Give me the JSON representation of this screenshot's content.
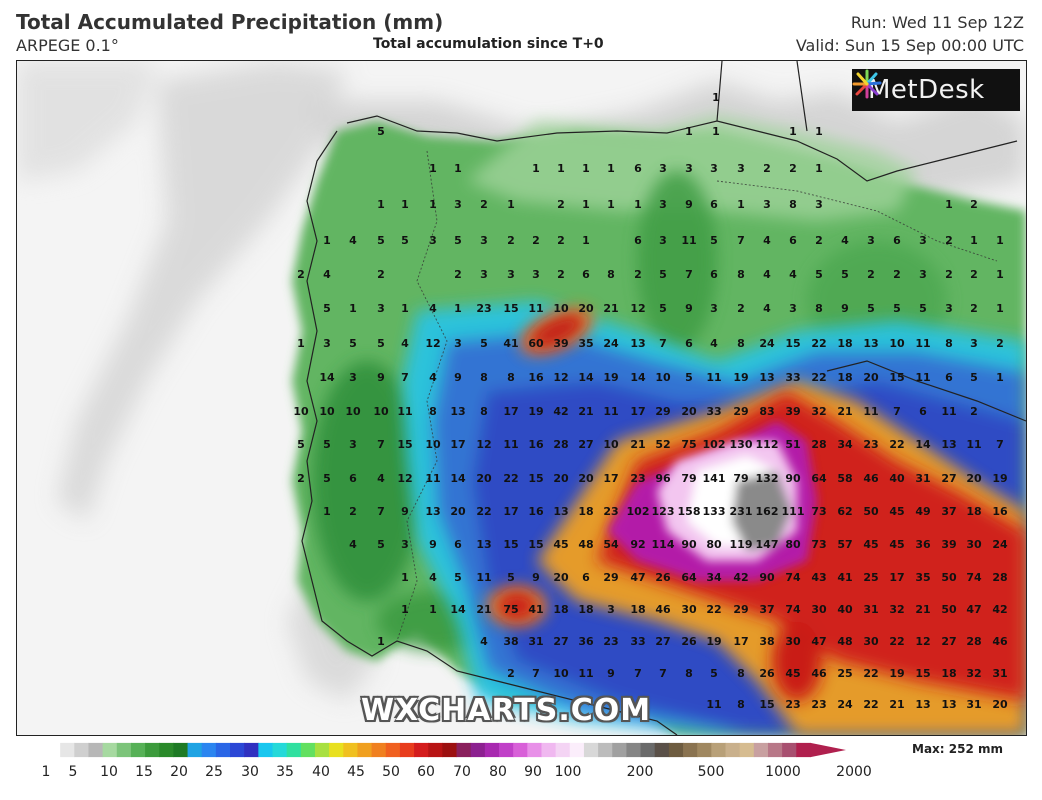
{
  "header": {
    "title": "Total Accumulated Precipitation (mm)",
    "model": "ARPEGE 0.1°",
    "subtitle": "Total accumulation since T+0",
    "run": "Run: Wed 11 Sep 12Z",
    "valid": "Valid: Sun 15 Sep 00:00 UTC"
  },
  "logo": {
    "text": "MetDesk",
    "icon": "metdesk-starburst-icon"
  },
  "watermark": "WXCHARTS.COM",
  "scale": {
    "labels": [
      "1",
      "5",
      "10",
      "15",
      "20",
      "25",
      "30",
      "35",
      "40",
      "45",
      "50",
      "60",
      "70",
      "80",
      "90",
      "100",
      "200",
      "500",
      "1000",
      "2000"
    ],
    "max_label": "Max: 252 mm"
  },
  "colors": {
    "background_sea": "#f4f4f4",
    "low": "#5fb45f",
    "mid_blue": "#2b56e0",
    "red": "#c81818",
    "magenta": "#b21fb0",
    "grey_high": "#7a7a7a"
  },
  "map_labels": [
    [
      "5",
      380,
      130
    ],
    [
      "1",
      432,
      167
    ],
    [
      "1",
      457,
      167
    ],
    [
      "1",
      535,
      167
    ],
    [
      "1",
      560,
      167
    ],
    [
      "1",
      585,
      167
    ],
    [
      "1",
      610,
      167
    ],
    [
      "6",
      637,
      167
    ],
    [
      "3",
      662,
      167
    ],
    [
      "3",
      688,
      167
    ],
    [
      "3",
      713,
      167
    ],
    [
      "3",
      740,
      167
    ],
    [
      "2",
      766,
      167
    ],
    [
      "2",
      792,
      167
    ],
    [
      "1",
      818,
      167
    ],
    [
      "1",
      715,
      96
    ],
    [
      "1",
      688,
      130
    ],
    [
      "1",
      715,
      130
    ],
    [
      "1",
      792,
      130
    ],
    [
      "1",
      818,
      130
    ],
    [
      "1",
      380,
      203
    ],
    [
      "1",
      404,
      203
    ],
    [
      "1",
      432,
      203
    ],
    [
      "3",
      457,
      203
    ],
    [
      "2",
      483,
      203
    ],
    [
      "1",
      510,
      203
    ],
    [
      "2",
      560,
      203
    ],
    [
      "1",
      585,
      203
    ],
    [
      "1",
      610,
      203
    ],
    [
      "1",
      637,
      203
    ],
    [
      "3",
      662,
      203
    ],
    [
      "9",
      688,
      203
    ],
    [
      "6",
      713,
      203
    ],
    [
      "1",
      740,
      203
    ],
    [
      "3",
      766,
      203
    ],
    [
      "8",
      792,
      203
    ],
    [
      "3",
      818,
      203
    ],
    [
      "1",
      948,
      203
    ],
    [
      "2",
      973,
      203
    ],
    [
      "1",
      326,
      239
    ],
    [
      "4",
      352,
      239
    ],
    [
      "5",
      380,
      239
    ],
    [
      "5",
      404,
      239
    ],
    [
      "3",
      432,
      239
    ],
    [
      "5",
      457,
      239
    ],
    [
      "3",
      483,
      239
    ],
    [
      "2",
      510,
      239
    ],
    [
      "2",
      535,
      239
    ],
    [
      "2",
      560,
      239
    ],
    [
      "1",
      585,
      239
    ],
    [
      "6",
      637,
      239
    ],
    [
      "3",
      662,
      239
    ],
    [
      "11",
      688,
      239
    ],
    [
      "5",
      713,
      239
    ],
    [
      "7",
      740,
      239
    ],
    [
      "4",
      766,
      239
    ],
    [
      "6",
      792,
      239
    ],
    [
      "2",
      818,
      239
    ],
    [
      "4",
      844,
      239
    ],
    [
      "3",
      870,
      239
    ],
    [
      "6",
      896,
      239
    ],
    [
      "3",
      922,
      239
    ],
    [
      "2",
      948,
      239
    ],
    [
      "1",
      973,
      239
    ],
    [
      "1",
      999,
      239
    ],
    [
      "2",
      300,
      273
    ],
    [
      "4",
      326,
      273
    ],
    [
      "2",
      380,
      273
    ],
    [
      "2",
      457,
      273
    ],
    [
      "3",
      483,
      273
    ],
    [
      "3",
      510,
      273
    ],
    [
      "3",
      535,
      273
    ],
    [
      "2",
      560,
      273
    ],
    [
      "6",
      585,
      273
    ],
    [
      "8",
      610,
      273
    ],
    [
      "2",
      637,
      273
    ],
    [
      "5",
      662,
      273
    ],
    [
      "7",
      688,
      273
    ],
    [
      "6",
      713,
      273
    ],
    [
      "8",
      740,
      273
    ],
    [
      "4",
      766,
      273
    ],
    [
      "4",
      792,
      273
    ],
    [
      "5",
      818,
      273
    ],
    [
      "5",
      844,
      273
    ],
    [
      "2",
      870,
      273
    ],
    [
      "2",
      896,
      273
    ],
    [
      "3",
      922,
      273
    ],
    [
      "2",
      948,
      273
    ],
    [
      "2",
      973,
      273
    ],
    [
      "1",
      999,
      273
    ],
    [
      "5",
      326,
      307
    ],
    [
      "1",
      352,
      307
    ],
    [
      "3",
      380,
      307
    ],
    [
      "1",
      404,
      307
    ],
    [
      "4",
      432,
      307
    ],
    [
      "1",
      457,
      307
    ],
    [
      "23",
      483,
      307
    ],
    [
      "15",
      510,
      307
    ],
    [
      "11",
      535,
      307
    ],
    [
      "10",
      560,
      307
    ],
    [
      "20",
      585,
      307
    ],
    [
      "21",
      610,
      307
    ],
    [
      "12",
      637,
      307
    ],
    [
      "5",
      662,
      307
    ],
    [
      "9",
      688,
      307
    ],
    [
      "3",
      713,
      307
    ],
    [
      "2",
      740,
      307
    ],
    [
      "4",
      766,
      307
    ],
    [
      "3",
      792,
      307
    ],
    [
      "8",
      818,
      307
    ],
    [
      "9",
      844,
      307
    ],
    [
      "5",
      870,
      307
    ],
    [
      "5",
      896,
      307
    ],
    [
      "5",
      922,
      307
    ],
    [
      "3",
      948,
      307
    ],
    [
      "2",
      973,
      307
    ],
    [
      "1",
      999,
      307
    ],
    [
      "1",
      300,
      342
    ],
    [
      "3",
      326,
      342
    ],
    [
      "5",
      352,
      342
    ],
    [
      "5",
      380,
      342
    ],
    [
      "4",
      404,
      342
    ],
    [
      "12",
      432,
      342
    ],
    [
      "3",
      457,
      342
    ],
    [
      "5",
      483,
      342
    ],
    [
      "41",
      510,
      342
    ],
    [
      "60",
      535,
      342
    ],
    [
      "39",
      560,
      342
    ],
    [
      "35",
      585,
      342
    ],
    [
      "24",
      610,
      342
    ],
    [
      "13",
      637,
      342
    ],
    [
      "7",
      662,
      342
    ],
    [
      "6",
      688,
      342
    ],
    [
      "4",
      713,
      342
    ],
    [
      "8",
      740,
      342
    ],
    [
      "24",
      766,
      342
    ],
    [
      "15",
      792,
      342
    ],
    [
      "22",
      818,
      342
    ],
    [
      "18",
      844,
      342
    ],
    [
      "13",
      870,
      342
    ],
    [
      "10",
      896,
      342
    ],
    [
      "11",
      922,
      342
    ],
    [
      "8",
      948,
      342
    ],
    [
      "3",
      973,
      342
    ],
    [
      "2",
      999,
      342
    ],
    [
      "14",
      326,
      376
    ],
    [
      "3",
      352,
      376
    ],
    [
      "9",
      380,
      376
    ],
    [
      "7",
      404,
      376
    ],
    [
      "4",
      432,
      376
    ],
    [
      "9",
      457,
      376
    ],
    [
      "8",
      483,
      376
    ],
    [
      "8",
      510,
      376
    ],
    [
      "16",
      535,
      376
    ],
    [
      "12",
      560,
      376
    ],
    [
      "14",
      585,
      376
    ],
    [
      "19",
      610,
      376
    ],
    [
      "14",
      637,
      376
    ],
    [
      "10",
      662,
      376
    ],
    [
      "5",
      688,
      376
    ],
    [
      "11",
      713,
      376
    ],
    [
      "19",
      740,
      376
    ],
    [
      "13",
      766,
      376
    ],
    [
      "33",
      792,
      376
    ],
    [
      "22",
      818,
      376
    ],
    [
      "18",
      844,
      376
    ],
    [
      "20",
      870,
      376
    ],
    [
      "15",
      896,
      376
    ],
    [
      "11",
      922,
      376
    ],
    [
      "6",
      948,
      376
    ],
    [
      "5",
      973,
      376
    ],
    [
      "1",
      999,
      376
    ],
    [
      "10",
      300,
      410
    ],
    [
      "10",
      326,
      410
    ],
    [
      "10",
      352,
      410
    ],
    [
      "10",
      380,
      410
    ],
    [
      "11",
      404,
      410
    ],
    [
      "8",
      432,
      410
    ],
    [
      "13",
      457,
      410
    ],
    [
      "8",
      483,
      410
    ],
    [
      "17",
      510,
      410
    ],
    [
      "19",
      535,
      410
    ],
    [
      "42",
      560,
      410
    ],
    [
      "21",
      585,
      410
    ],
    [
      "11",
      610,
      410
    ],
    [
      "17",
      637,
      410
    ],
    [
      "29",
      662,
      410
    ],
    [
      "20",
      688,
      410
    ],
    [
      "33",
      713,
      410
    ],
    [
      "29",
      740,
      410
    ],
    [
      "83",
      766,
      410
    ],
    [
      "39",
      792,
      410
    ],
    [
      "32",
      818,
      410
    ],
    [
      "21",
      844,
      410
    ],
    [
      "11",
      870,
      410
    ],
    [
      "7",
      896,
      410
    ],
    [
      "6",
      922,
      410
    ],
    [
      "11",
      948,
      410
    ],
    [
      "2",
      973,
      410
    ],
    [
      "5",
      300,
      443
    ],
    [
      "5",
      326,
      443
    ],
    [
      "3",
      352,
      443
    ],
    [
      "7",
      380,
      443
    ],
    [
      "15",
      404,
      443
    ],
    [
      "10",
      432,
      443
    ],
    [
      "17",
      457,
      443
    ],
    [
      "12",
      483,
      443
    ],
    [
      "11",
      510,
      443
    ],
    [
      "16",
      535,
      443
    ],
    [
      "28",
      560,
      443
    ],
    [
      "27",
      585,
      443
    ],
    [
      "10",
      610,
      443
    ],
    [
      "21",
      637,
      443
    ],
    [
      "52",
      662,
      443
    ],
    [
      "75",
      688,
      443
    ],
    [
      "102",
      713,
      443
    ],
    [
      "130",
      740,
      443
    ],
    [
      "112",
      766,
      443
    ],
    [
      "51",
      792,
      443
    ],
    [
      "28",
      818,
      443
    ],
    [
      "34",
      844,
      443
    ],
    [
      "23",
      870,
      443
    ],
    [
      "22",
      896,
      443
    ],
    [
      "14",
      922,
      443
    ],
    [
      "13",
      948,
      443
    ],
    [
      "11",
      973,
      443
    ],
    [
      "7",
      999,
      443
    ],
    [
      "2",
      300,
      477
    ],
    [
      "5",
      326,
      477
    ],
    [
      "6",
      352,
      477
    ],
    [
      "4",
      380,
      477
    ],
    [
      "12",
      404,
      477
    ],
    [
      "11",
      432,
      477
    ],
    [
      "14",
      457,
      477
    ],
    [
      "20",
      483,
      477
    ],
    [
      "22",
      510,
      477
    ],
    [
      "15",
      535,
      477
    ],
    [
      "20",
      560,
      477
    ],
    [
      "20",
      585,
      477
    ],
    [
      "17",
      610,
      477
    ],
    [
      "23",
      637,
      477
    ],
    [
      "96",
      662,
      477
    ],
    [
      "79",
      688,
      477
    ],
    [
      "141",
      713,
      477
    ],
    [
      "79",
      740,
      477
    ],
    [
      "132",
      766,
      477
    ],
    [
      "90",
      792,
      477
    ],
    [
      "64",
      818,
      477
    ],
    [
      "58",
      844,
      477
    ],
    [
      "46",
      870,
      477
    ],
    [
      "40",
      896,
      477
    ],
    [
      "31",
      922,
      477
    ],
    [
      "27",
      948,
      477
    ],
    [
      "20",
      973,
      477
    ],
    [
      "19",
      999,
      477
    ],
    [
      "1",
      326,
      510
    ],
    [
      "2",
      352,
      510
    ],
    [
      "7",
      380,
      510
    ],
    [
      "9",
      404,
      510
    ],
    [
      "13",
      432,
      510
    ],
    [
      "20",
      457,
      510
    ],
    [
      "22",
      483,
      510
    ],
    [
      "17",
      510,
      510
    ],
    [
      "16",
      535,
      510
    ],
    [
      "13",
      560,
      510
    ],
    [
      "18",
      585,
      510
    ],
    [
      "23",
      610,
      510
    ],
    [
      "102",
      637,
      510
    ],
    [
      "123",
      662,
      510
    ],
    [
      "158",
      688,
      510
    ],
    [
      "133",
      713,
      510
    ],
    [
      "231",
      740,
      510
    ],
    [
      "162",
      766,
      510
    ],
    [
      "111",
      792,
      510
    ],
    [
      "73",
      818,
      510
    ],
    [
      "62",
      844,
      510
    ],
    [
      "50",
      870,
      510
    ],
    [
      "45",
      896,
      510
    ],
    [
      "49",
      922,
      510
    ],
    [
      "37",
      948,
      510
    ],
    [
      "18",
      973,
      510
    ],
    [
      "16",
      999,
      510
    ],
    [
      "4",
      352,
      543
    ],
    [
      "5",
      380,
      543
    ],
    [
      "3",
      404,
      543
    ],
    [
      "9",
      432,
      543
    ],
    [
      "6",
      457,
      543
    ],
    [
      "13",
      483,
      543
    ],
    [
      "15",
      510,
      543
    ],
    [
      "15",
      535,
      543
    ],
    [
      "45",
      560,
      543
    ],
    [
      "48",
      585,
      543
    ],
    [
      "54",
      610,
      543
    ],
    [
      "92",
      637,
      543
    ],
    [
      "114",
      662,
      543
    ],
    [
      "90",
      688,
      543
    ],
    [
      "80",
      713,
      543
    ],
    [
      "119",
      740,
      543
    ],
    [
      "147",
      766,
      543
    ],
    [
      "80",
      792,
      543
    ],
    [
      "73",
      818,
      543
    ],
    [
      "57",
      844,
      543
    ],
    [
      "45",
      870,
      543
    ],
    [
      "45",
      896,
      543
    ],
    [
      "36",
      922,
      543
    ],
    [
      "39",
      948,
      543
    ],
    [
      "30",
      973,
      543
    ],
    [
      "24",
      999,
      543
    ],
    [
      "1",
      404,
      576
    ],
    [
      "4",
      432,
      576
    ],
    [
      "5",
      457,
      576
    ],
    [
      "11",
      483,
      576
    ],
    [
      "5",
      510,
      576
    ],
    [
      "9",
      535,
      576
    ],
    [
      "20",
      560,
      576
    ],
    [
      "6",
      585,
      576
    ],
    [
      "29",
      610,
      576
    ],
    [
      "47",
      637,
      576
    ],
    [
      "26",
      662,
      576
    ],
    [
      "64",
      688,
      576
    ],
    [
      "34",
      713,
      576
    ],
    [
      "42",
      740,
      576
    ],
    [
      "90",
      766,
      576
    ],
    [
      "74",
      792,
      576
    ],
    [
      "43",
      818,
      576
    ],
    [
      "41",
      844,
      576
    ],
    [
      "25",
      870,
      576
    ],
    [
      "17",
      896,
      576
    ],
    [
      "35",
      922,
      576
    ],
    [
      "50",
      948,
      576
    ],
    [
      "74",
      973,
      576
    ],
    [
      "28",
      999,
      576
    ],
    [
      "1",
      404,
      608
    ],
    [
      "1",
      432,
      608
    ],
    [
      "14",
      457,
      608
    ],
    [
      "21",
      483,
      608
    ],
    [
      "75",
      510,
      608
    ],
    [
      "41",
      535,
      608
    ],
    [
      "18",
      560,
      608
    ],
    [
      "18",
      585,
      608
    ],
    [
      "3",
      610,
      608
    ],
    [
      "18",
      637,
      608
    ],
    [
      "46",
      662,
      608
    ],
    [
      "30",
      688,
      608
    ],
    [
      "22",
      713,
      608
    ],
    [
      "29",
      740,
      608
    ],
    [
      "37",
      766,
      608
    ],
    [
      "74",
      792,
      608
    ],
    [
      "30",
      818,
      608
    ],
    [
      "40",
      844,
      608
    ],
    [
      "31",
      870,
      608
    ],
    [
      "32",
      896,
      608
    ],
    [
      "21",
      922,
      608
    ],
    [
      "50",
      948,
      608
    ],
    [
      "47",
      973,
      608
    ],
    [
      "42",
      999,
      608
    ],
    [
      "1",
      380,
      640
    ],
    [
      "4",
      483,
      640
    ],
    [
      "38",
      510,
      640
    ],
    [
      "31",
      535,
      640
    ],
    [
      "27",
      560,
      640
    ],
    [
      "36",
      585,
      640
    ],
    [
      "23",
      610,
      640
    ],
    [
      "33",
      637,
      640
    ],
    [
      "27",
      662,
      640
    ],
    [
      "26",
      688,
      640
    ],
    [
      "19",
      713,
      640
    ],
    [
      "17",
      740,
      640
    ],
    [
      "38",
      766,
      640
    ],
    [
      "30",
      792,
      640
    ],
    [
      "47",
      818,
      640
    ],
    [
      "48",
      844,
      640
    ],
    [
      "30",
      870,
      640
    ],
    [
      "22",
      896,
      640
    ],
    [
      "12",
      922,
      640
    ],
    [
      "27",
      948,
      640
    ],
    [
      "28",
      973,
      640
    ],
    [
      "46",
      999,
      640
    ],
    [
      "2",
      510,
      672
    ],
    [
      "7",
      535,
      672
    ],
    [
      "10",
      560,
      672
    ],
    [
      "11",
      585,
      672
    ],
    [
      "9",
      610,
      672
    ],
    [
      "7",
      637,
      672
    ],
    [
      "7",
      662,
      672
    ],
    [
      "8",
      688,
      672
    ],
    [
      "5",
      713,
      672
    ],
    [
      "8",
      740,
      672
    ],
    [
      "26",
      766,
      672
    ],
    [
      "45",
      792,
      672
    ],
    [
      "46",
      818,
      672
    ],
    [
      "25",
      844,
      672
    ],
    [
      "22",
      870,
      672
    ],
    [
      "19",
      896,
      672
    ],
    [
      "15",
      922,
      672
    ],
    [
      "18",
      948,
      672
    ],
    [
      "32",
      973,
      672
    ],
    [
      "31",
      999,
      672
    ],
    [
      "11",
      713,
      703
    ],
    [
      "8",
      740,
      703
    ],
    [
      "15",
      766,
      703
    ],
    [
      "23",
      792,
      703
    ],
    [
      "23",
      818,
      703
    ],
    [
      "24",
      844,
      703
    ],
    [
      "22",
      870,
      703
    ],
    [
      "21",
      896,
      703
    ],
    [
      "13",
      922,
      703
    ],
    [
      "13",
      948,
      703
    ],
    [
      "31",
      973,
      703
    ],
    [
      "20",
      999,
      703
    ]
  ]
}
